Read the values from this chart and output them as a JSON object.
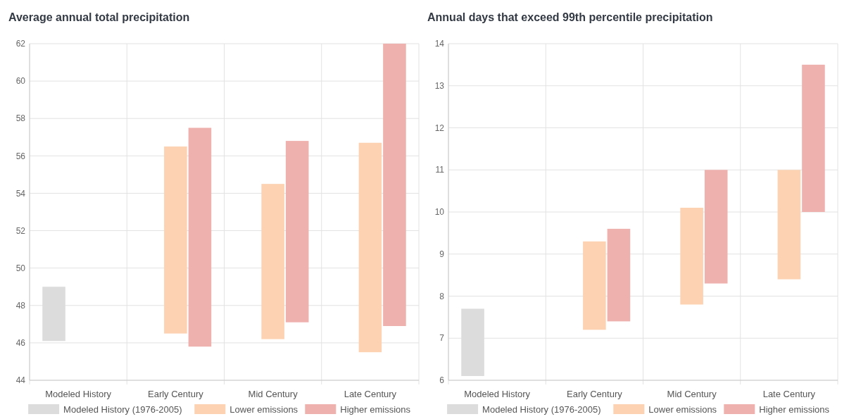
{
  "chart_data": [
    {
      "type": "bar",
      "title": "Average annual total precipitation",
      "categories": [
        "Modeled History",
        "Early Century",
        "Mid Century",
        "Late Century"
      ],
      "series": [
        {
          "name": "Modeled History (1976-2005)",
          "color": "#dcdcdc",
          "base": [
            46.1,
            null,
            null,
            null
          ],
          "values": [
            2.9,
            null,
            null,
            null
          ]
        },
        {
          "name": "Lower emissions",
          "color": "#fcd2b2",
          "base": [
            null,
            46.5,
            46.2,
            45.5
          ],
          "values": [
            null,
            10,
            8.3,
            11.2
          ]
        },
        {
          "name": "Higher emissions",
          "color": "#efb1ad",
          "base": [
            null,
            45.8,
            47.1,
            46.9
          ],
          "values": [
            null,
            11.7,
            9.7,
            15.1
          ]
        }
      ],
      "ylim": [
        44,
        62
      ],
      "yticks": [
        44,
        46,
        48,
        50,
        52,
        54,
        56,
        58,
        60,
        62
      ],
      "grid": true,
      "legend": "bottom"
    },
    {
      "type": "bar",
      "title": "Annual days that exceed 99th percentile precipitation",
      "categories": [
        "Modeled History",
        "Early Century",
        "Mid Century",
        "Late Century"
      ],
      "series": [
        {
          "name": "Modeled History (1976-2005)",
          "color": "#dcdcdc",
          "base": [
            6.1,
            null,
            null,
            null
          ],
          "values": [
            1.6,
            null,
            null,
            null
          ]
        },
        {
          "name": "Lower emissions",
          "color": "#fcd2b2",
          "base": [
            null,
            7.2,
            7.8,
            8.4
          ],
          "values": [
            null,
            2.1,
            2.3,
            2.6
          ]
        },
        {
          "name": "Higher emissions",
          "color": "#efb1ad",
          "base": [
            null,
            7.4,
            8.3,
            10
          ],
          "values": [
            null,
            2.2,
            2.7,
            3.5
          ]
        }
      ],
      "ylim": [
        6,
        14
      ],
      "yticks": [
        6,
        7,
        8,
        9,
        10,
        11,
        12,
        13,
        14
      ],
      "grid": true,
      "legend": "bottom"
    }
  ]
}
